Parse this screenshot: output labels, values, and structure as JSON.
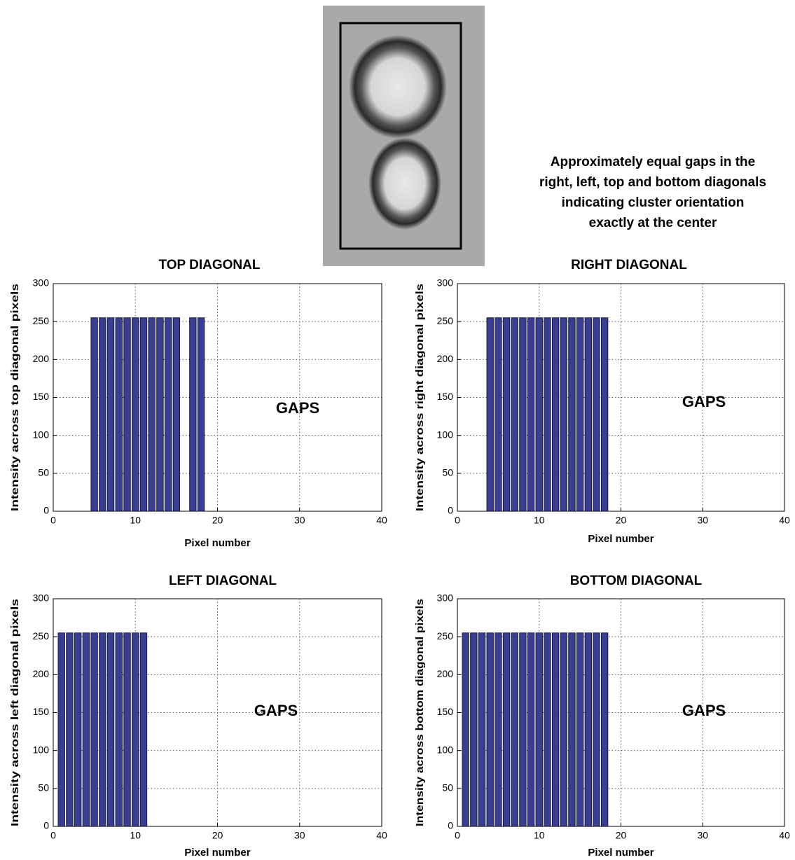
{
  "note_lines": [
    "Approximately equal gaps in the",
    "right, left, top and bottom diagonals",
    "indicating cluster orientation",
    "exactly at the center"
  ],
  "chart_data": [
    {
      "type": "bar",
      "title": "TOP DIAGONAL",
      "x_label": "Pixel number",
      "y_label": "Intensity across top diagonal pixels",
      "annotation": "GAPS",
      "x": [
        5,
        6,
        7,
        8,
        9,
        10,
        11,
        12,
        13,
        14,
        15,
        17,
        18
      ],
      "values": [
        255,
        255,
        255,
        255,
        255,
        255,
        255,
        255,
        255,
        255,
        255,
        255,
        255
      ],
      "color": "#3b3f92",
      "xlim": [
        0,
        40
      ],
      "ylim": [
        0,
        300
      ],
      "xticks": [
        0,
        10,
        20,
        30,
        40
      ],
      "yticks": [
        0,
        50,
        100,
        150,
        200,
        250,
        300
      ],
      "grid": true
    },
    {
      "type": "bar",
      "title": "RIGHT DIAGONAL",
      "x_label": "Pixel number",
      "y_label": "Intensity across right diagonal pixels",
      "annotation": "GAPS",
      "x": [
        4,
        5,
        6,
        7,
        8,
        9,
        10,
        11,
        12,
        13,
        14,
        15,
        16,
        17,
        18
      ],
      "values": [
        255,
        255,
        255,
        255,
        255,
        255,
        255,
        255,
        255,
        255,
        255,
        255,
        255,
        255,
        255
      ],
      "color": "#3b3f92",
      "xlim": [
        0,
        40
      ],
      "ylim": [
        0,
        300
      ],
      "xticks": [
        0,
        10,
        20,
        30,
        40
      ],
      "yticks": [
        0,
        50,
        100,
        150,
        200,
        250,
        300
      ],
      "grid": true
    },
    {
      "type": "bar",
      "title": "LEFT DIAGONAL",
      "x_label": "Pixel number",
      "y_label": "Intensity across left diagonal pixels",
      "annotation": "GAPS",
      "x": [
        1,
        2,
        3,
        4,
        5,
        6,
        7,
        8,
        9,
        10,
        11
      ],
      "values": [
        255,
        255,
        255,
        255,
        255,
        255,
        255,
        255,
        255,
        255,
        255
      ],
      "color": "#3b3f92",
      "xlim": [
        0,
        40
      ],
      "ylim": [
        0,
        300
      ],
      "xticks": [
        0,
        10,
        20,
        30,
        40
      ],
      "yticks": [
        0,
        50,
        100,
        150,
        200,
        250,
        300
      ],
      "grid": true
    },
    {
      "type": "bar",
      "title": "BOTTOM DIAGONAL",
      "x_label": "Pixel number",
      "y_label": "Intensity across bottom diagonal pixels",
      "annotation": "GAPS",
      "x": [
        1,
        2,
        3,
        4,
        5,
        6,
        7,
        8,
        9,
        10,
        11,
        12,
        13,
        14,
        15,
        16,
        17,
        18
      ],
      "values": [
        255,
        255,
        255,
        255,
        255,
        255,
        255,
        255,
        255,
        255,
        255,
        255,
        255,
        255,
        255,
        255,
        255,
        255
      ],
      "color": "#3b3f92",
      "xlim": [
        0,
        40
      ],
      "ylim": [
        0,
        300
      ],
      "xticks": [
        0,
        10,
        20,
        30,
        40
      ],
      "yticks": [
        0,
        50,
        100,
        150,
        200,
        250,
        300
      ],
      "grid": true
    }
  ]
}
